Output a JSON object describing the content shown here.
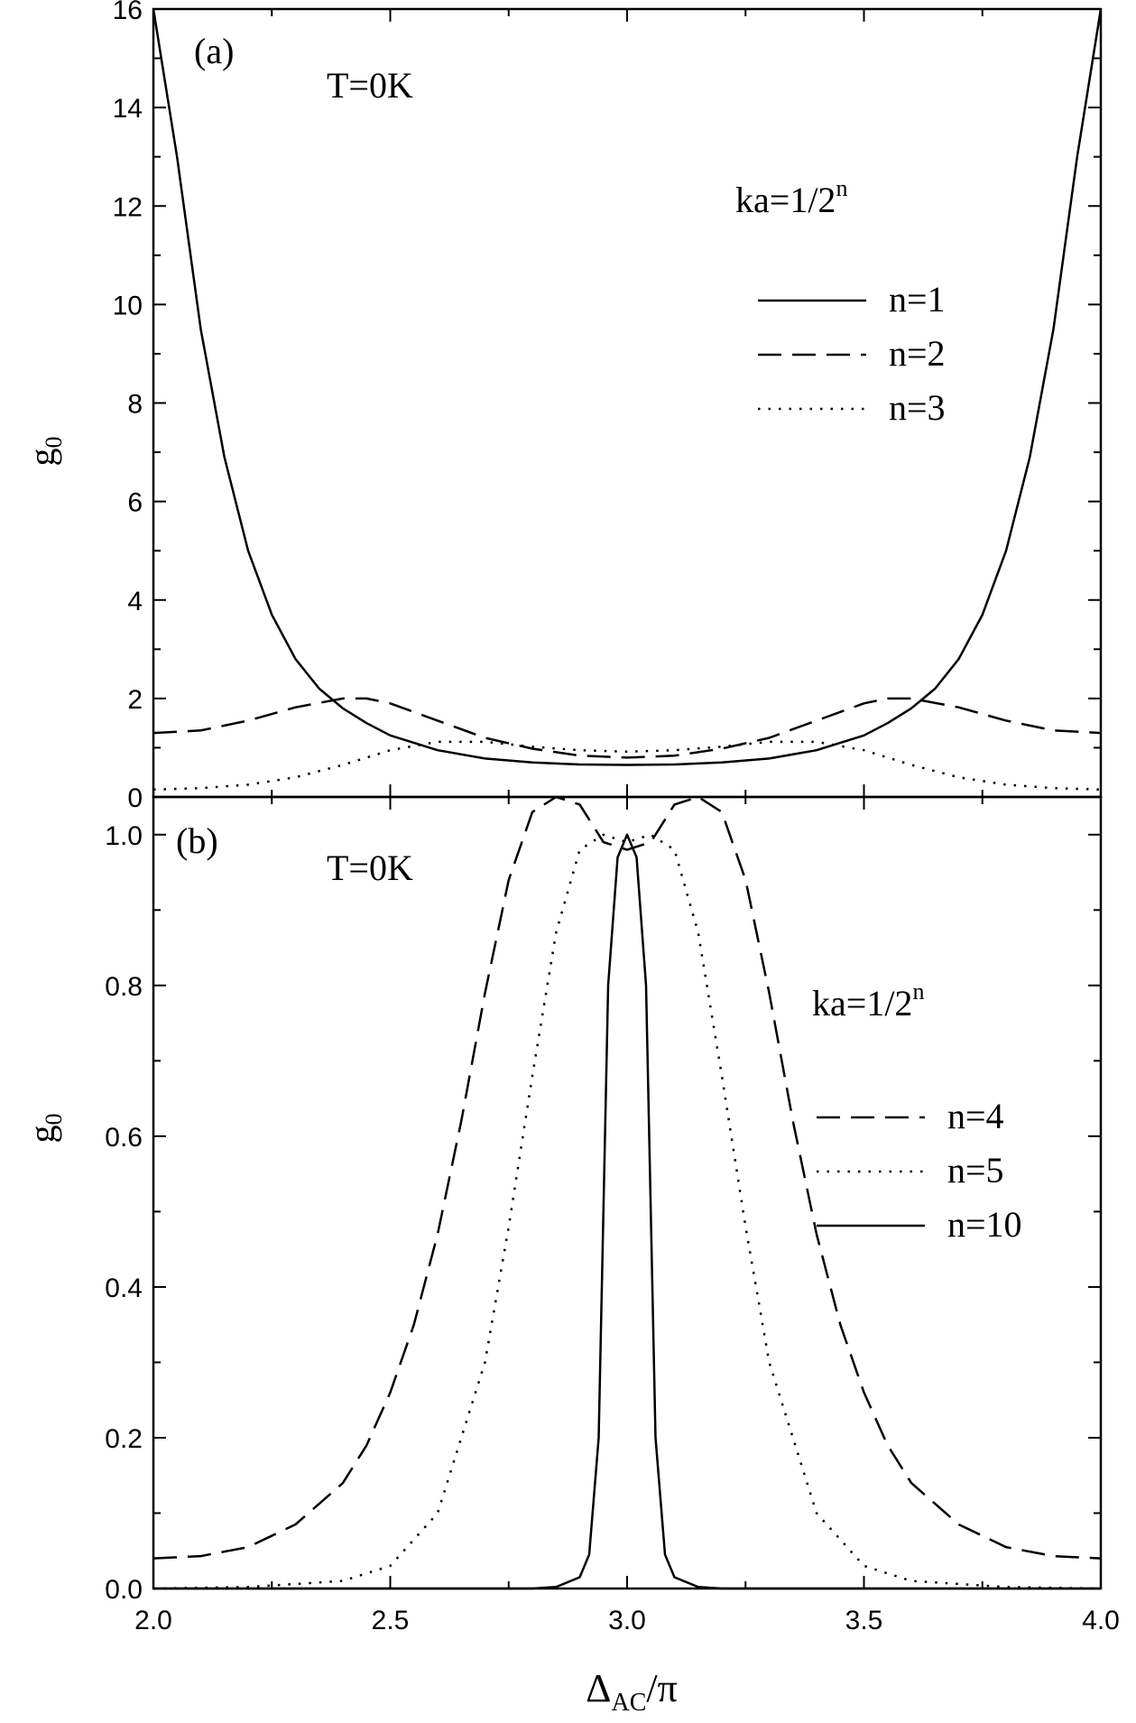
{
  "chart_data": [
    {
      "type": "line",
      "panel_label": "(a)",
      "annotation": "T=0K",
      "legend_title": "ka=1/2",
      "legend_title_sup": "n",
      "ylabel": "g",
      "ylabel_sub": "0",
      "xlim": [
        2.0,
        4.0
      ],
      "ylim": [
        0,
        16
      ],
      "y_ticks": [
        0,
        2,
        4,
        6,
        8,
        10,
        12,
        14,
        16
      ],
      "y_tick_labels": [
        "0",
        "2",
        "4",
        "6",
        "8",
        "10",
        "12",
        "14",
        "16"
      ],
      "legend_placement": "right",
      "series": [
        {
          "name": "n=1",
          "style": "solid",
          "x": [
            2.0,
            2.05,
            2.1,
            2.15,
            2.2,
            2.25,
            2.3,
            2.35,
            2.4,
            2.45,
            2.5,
            2.6,
            2.7,
            2.8,
            2.9,
            3.0,
            3.1,
            3.2,
            3.3,
            3.4,
            3.5,
            3.55,
            3.6,
            3.65,
            3.7,
            3.75,
            3.8,
            3.85,
            3.9,
            3.95,
            4.0
          ],
          "y": [
            16.0,
            13.0,
            9.5,
            6.9,
            5.0,
            3.7,
            2.8,
            2.2,
            1.8,
            1.5,
            1.25,
            0.95,
            0.78,
            0.7,
            0.66,
            0.65,
            0.66,
            0.7,
            0.78,
            0.95,
            1.25,
            1.5,
            1.8,
            2.2,
            2.8,
            3.7,
            5.0,
            6.9,
            9.5,
            13.0,
            16.0
          ]
        },
        {
          "name": "n=2",
          "style": "dashed",
          "x": [
            2.0,
            2.1,
            2.2,
            2.3,
            2.4,
            2.45,
            2.5,
            2.6,
            2.7,
            2.8,
            2.9,
            3.0,
            3.1,
            3.2,
            3.3,
            3.4,
            3.5,
            3.55,
            3.6,
            3.7,
            3.8,
            3.9,
            4.0
          ],
          "y": [
            1.3,
            1.35,
            1.55,
            1.82,
            2.0,
            2.0,
            1.9,
            1.55,
            1.2,
            0.98,
            0.84,
            0.8,
            0.84,
            0.98,
            1.2,
            1.55,
            1.9,
            2.0,
            2.0,
            1.82,
            1.55,
            1.35,
            1.3
          ]
        },
        {
          "name": "n=3",
          "style": "dotted",
          "x": [
            2.0,
            2.1,
            2.2,
            2.3,
            2.4,
            2.5,
            2.6,
            2.7,
            2.8,
            2.9,
            3.0,
            3.1,
            3.2,
            3.3,
            3.4,
            3.5,
            3.6,
            3.7,
            3.8,
            3.9,
            4.0
          ],
          "y": [
            0.15,
            0.18,
            0.25,
            0.4,
            0.65,
            0.95,
            1.12,
            1.12,
            1.02,
            0.95,
            0.92,
            0.95,
            1.02,
            1.12,
            1.12,
            0.95,
            0.65,
            0.4,
            0.25,
            0.18,
            0.15
          ]
        }
      ]
    },
    {
      "type": "line",
      "panel_label": "(b)",
      "annotation": "T=0K",
      "legend_title": "ka=1/2",
      "legend_title_sup": "n",
      "ylabel": "g",
      "ylabel_sub": "0",
      "xlabel": "Δ",
      "xlabel_sub": "AC",
      "xlabel_suffix": "/π",
      "xlim": [
        2.0,
        4.0
      ],
      "ylim": [
        0,
        1.05
      ],
      "x_ticks": [
        2.0,
        2.5,
        3.0,
        3.5,
        4.0
      ],
      "x_tick_labels": [
        "2.0",
        "2.5",
        "3.0",
        "3.5",
        "4.0"
      ],
      "y_ticks": [
        0.0,
        0.2,
        0.4,
        0.6,
        0.8,
        1.0
      ],
      "y_tick_labels": [
        "0.0",
        "0.2",
        "0.4",
        "0.6",
        "0.8",
        "1.0"
      ],
      "legend_placement": "right",
      "series": [
        {
          "name": "n=4",
          "style": "dashed",
          "x": [
            2.0,
            2.1,
            2.2,
            2.3,
            2.4,
            2.45,
            2.5,
            2.55,
            2.6,
            2.65,
            2.7,
            2.75,
            2.8,
            2.85,
            2.9,
            2.95,
            3.0,
            3.05,
            3.1,
            3.15,
            3.2,
            3.25,
            3.3,
            3.35,
            3.4,
            3.45,
            3.5,
            3.55,
            3.6,
            3.7,
            3.8,
            3.9,
            4.0
          ],
          "y": [
            0.04,
            0.043,
            0.055,
            0.085,
            0.14,
            0.19,
            0.26,
            0.35,
            0.47,
            0.62,
            0.79,
            0.94,
            1.03,
            1.05,
            1.04,
            0.99,
            0.98,
            0.99,
            1.04,
            1.05,
            1.03,
            0.94,
            0.79,
            0.62,
            0.47,
            0.35,
            0.26,
            0.19,
            0.14,
            0.085,
            0.055,
            0.043,
            0.04
          ]
        },
        {
          "name": "n=5",
          "style": "dotted",
          "x": [
            2.0,
            2.2,
            2.4,
            2.5,
            2.6,
            2.7,
            2.75,
            2.8,
            2.85,
            2.9,
            2.95,
            3.0,
            3.05,
            3.1,
            3.15,
            3.2,
            3.25,
            3.3,
            3.4,
            3.5,
            3.6,
            3.8,
            4.0
          ],
          "y": [
            0.0,
            0.002,
            0.01,
            0.03,
            0.1,
            0.3,
            0.48,
            0.68,
            0.87,
            0.98,
            1.0,
            0.99,
            1.0,
            0.98,
            0.87,
            0.68,
            0.48,
            0.3,
            0.1,
            0.03,
            0.01,
            0.002,
            0.0
          ]
        },
        {
          "name": "n=10",
          "style": "solid",
          "x": [
            2.0,
            2.8,
            2.85,
            2.9,
            2.92,
            2.94,
            2.96,
            2.98,
            3.0,
            3.02,
            3.04,
            3.06,
            3.08,
            3.1,
            3.15,
            3.2,
            4.0
          ],
          "y": [
            0.0,
            0.0,
            0.002,
            0.015,
            0.045,
            0.2,
            0.8,
            0.97,
            1.0,
            0.97,
            0.8,
            0.2,
            0.045,
            0.015,
            0.002,
            0.0,
            0.0
          ]
        }
      ]
    }
  ]
}
